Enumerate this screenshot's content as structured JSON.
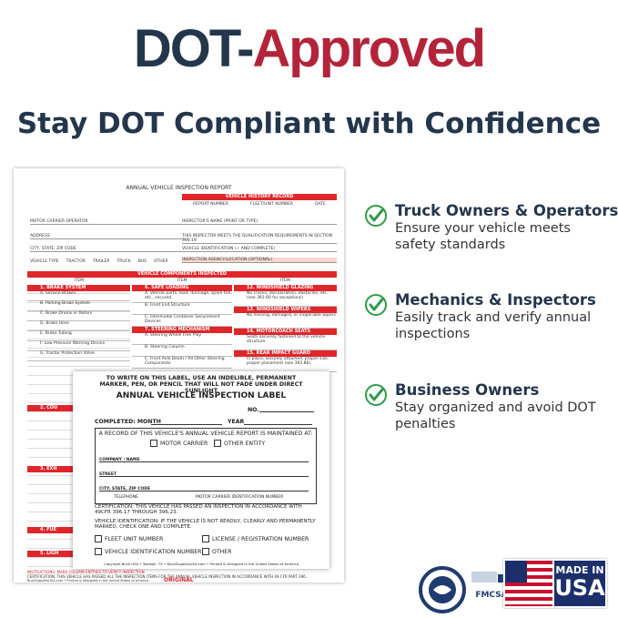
{
  "header": {
    "title_part1": "DOT-",
    "title_part2": "Approved",
    "subtitle": "Stay DOT Compliant with Confidence"
  },
  "features": [
    {
      "title": "Truck Owners & Operators",
      "text": "Ensure your vehicle meets safety standards"
    },
    {
      "title": "Mechanics & Inspectors",
      "text": "Easily track and verify annual inspections"
    },
    {
      "title": "Business Owners",
      "text": "Stay organized and avoid DOT penalties"
    }
  ],
  "form": {
    "title": "ANNUAL VEHICLE INSPECTION REPORT",
    "history": "VEHICLE HISTORY RECORD",
    "history_cols": [
      "REPORT NUMBER",
      "FLEET/UNIT NUMBER",
      "DATE"
    ],
    "fields": [
      "MOTOR CARRIER OPERATOR",
      "ADDRESS",
      "CITY, STATE, ZIP CODE",
      "VEHICLE TYPE",
      "INSPECTOR'S NAME (PRINT OR TYPE)",
      "THIS INSPECTOR MEETS THE QUALIFICATION REQUIREMENTS IN SECTION 396.19.",
      "VEHICLE IDENTIFICATION (✓ AND COMPLETE)",
      "INSPECTION AGENCY/LOCATION (OPTIONAL)"
    ],
    "vehicle_types": [
      "TRACTOR",
      "TRAILER",
      "TRUCK",
      "BUS",
      "OTHER"
    ],
    "components": "VEHICLE COMPONENTS INSPECTED",
    "item_header": "ITEM",
    "col1": {
      "section": "1. BRAKE SYSTEM",
      "items": [
        "A. Service Brakes",
        "B. Parking Brake System",
        "C. Brake Drums or Rotors",
        "D. Brake Hose",
        "E. Brake Tubing",
        "F. Low Pressure Warning Device",
        "G. Tractor Protection Valve"
      ]
    },
    "col2": [
      {
        "section": "6. SAFE LOADING",
        "items": [
          "A. Vehicle parts, load, dunnage, spare tire, etc., secured.",
          "B. Front End Structure",
          "C. Intermodal Container Securement Devices"
        ]
      },
      {
        "section": "7. STEERING MECHANISM",
        "items": [
          "A. Steering Wheel Free Play",
          "B. Steering Column",
          "C. Front Axle Beam / All Other Steering Components"
        ]
      }
    ],
    "col3": [
      {
        "section": "12. WINDSHIELD GLAZING",
        "items": [
          "No cracks, discoloration, obstacles, etc. (see 393.60 for exceptions)"
        ]
      },
      {
        "section": "13. WINDSHIELD WIPERS",
        "items": [
          "No missing, damaged, or inoperable wipers"
        ]
      },
      {
        "section": "14. MOTORCOACH SEATS",
        "items": [
          "Seats securely fastened to the vehicle structure."
        ]
      },
      {
        "section": "15. REAR IMPACT GUARD",
        "items": [
          "In place, securely attached, proper size, proper placement (see 393.86)."
        ]
      }
    ],
    "lower_sections": [
      "2. COU",
      "3. EXH",
      "4. FUE",
      "5. LIGH"
    ],
    "footer": "INSTRUCTIONS: MARK COLUMN ENTRIES TO VERIFY INSPECTION",
    "footer2": "CERTIFICATION: THIS VEHICLE HAS PASSED ALL THE INSPECTION ITEMS FOR THE ANNUAL VEHICLE INSPECTION IN ACCORDANCE WITH 49 CFR PART 396.",
    "copy": "BuckSuppliesUSA.com • Printed & Designed in the United States of America",
    "original": "ORIGINAL"
  },
  "label": {
    "instruction": "TO WRITE ON THIS LABEL, USE AN INDELIBLE, PERMANENT MARKER, PEN, OR PENCIL THAT WILL NOT FADE UNDER DIRECT SUNLIGHT",
    "title": "ANNUAL VEHICLE INSPECTION LABEL",
    "no": "NO.",
    "month": "COMPLETED: MONTH",
    "year": "YEAR",
    "record": "A RECORD OF THIS VEHICLE'S ANNUAL VEHICLE REPORT IS MAINTAINED AT:",
    "motor_carrier": "MOTOR CARRIER",
    "other_entity": "OTHER ENTITY",
    "company": "COMPANY / NAME",
    "street": "STREET",
    "city": "CITY, STATE, ZIP CODE",
    "telephone": "TELEPHONE",
    "mcid": "MOTOR CARRIER IDENTIFICATION NUMBER",
    "certification": "CERTIFICATION: THIS VEHICLE HAS PASSED AN INSPECTION IN ACCORDANCE WITH 49CFR 396.17 THROUGH 396.23.",
    "vehicle_id": "VEHICLE IDENTIFICATION: IF THE VEHICLE IS NOT READILY, CLEARLY AND PERMANENTLY MARKED, CHECK ONE AND COMPLETE.",
    "fleet": "FLEET UNIT NUMBER",
    "license": "LICENSE / REGISTRATION NUMBER",
    "vin": "VEHICLE IDENTIFICATION NUMBER",
    "other": "OTHER",
    "copyright": "Copyright Buck USA • Tomball, TX • BuckSuppliesUSA.com • Printed & Designed in the United States of America"
  },
  "badges": {
    "fmcsa": "FMCSA",
    "made_in": "MADE IN",
    "usa": "USA"
  }
}
